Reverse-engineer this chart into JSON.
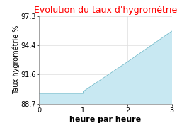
{
  "title": "Evolution du taux d'hygrométrie",
  "title_color": "#ff0000",
  "xlabel": "heure par heure",
  "ylabel": "Taux hygrométrie %",
  "x_data": [
    0,
    1,
    1,
    2,
    3
  ],
  "y_data": [
    89.7,
    89.7,
    89.9,
    92.8,
    95.8
  ],
  "xlim": [
    0,
    3
  ],
  "ylim": [
    88.7,
    97.3
  ],
  "yticks": [
    88.7,
    91.6,
    94.4,
    97.3
  ],
  "xticks": [
    0,
    1,
    2,
    3
  ],
  "fill_color": "#c8e8f2",
  "line_color": "#7abfcf",
  "background_color": "#ffffff",
  "grid_color": "#dddddd",
  "title_fontsize": 9,
  "xlabel_fontsize": 8,
  "ylabel_fontsize": 7,
  "tick_fontsize": 7
}
